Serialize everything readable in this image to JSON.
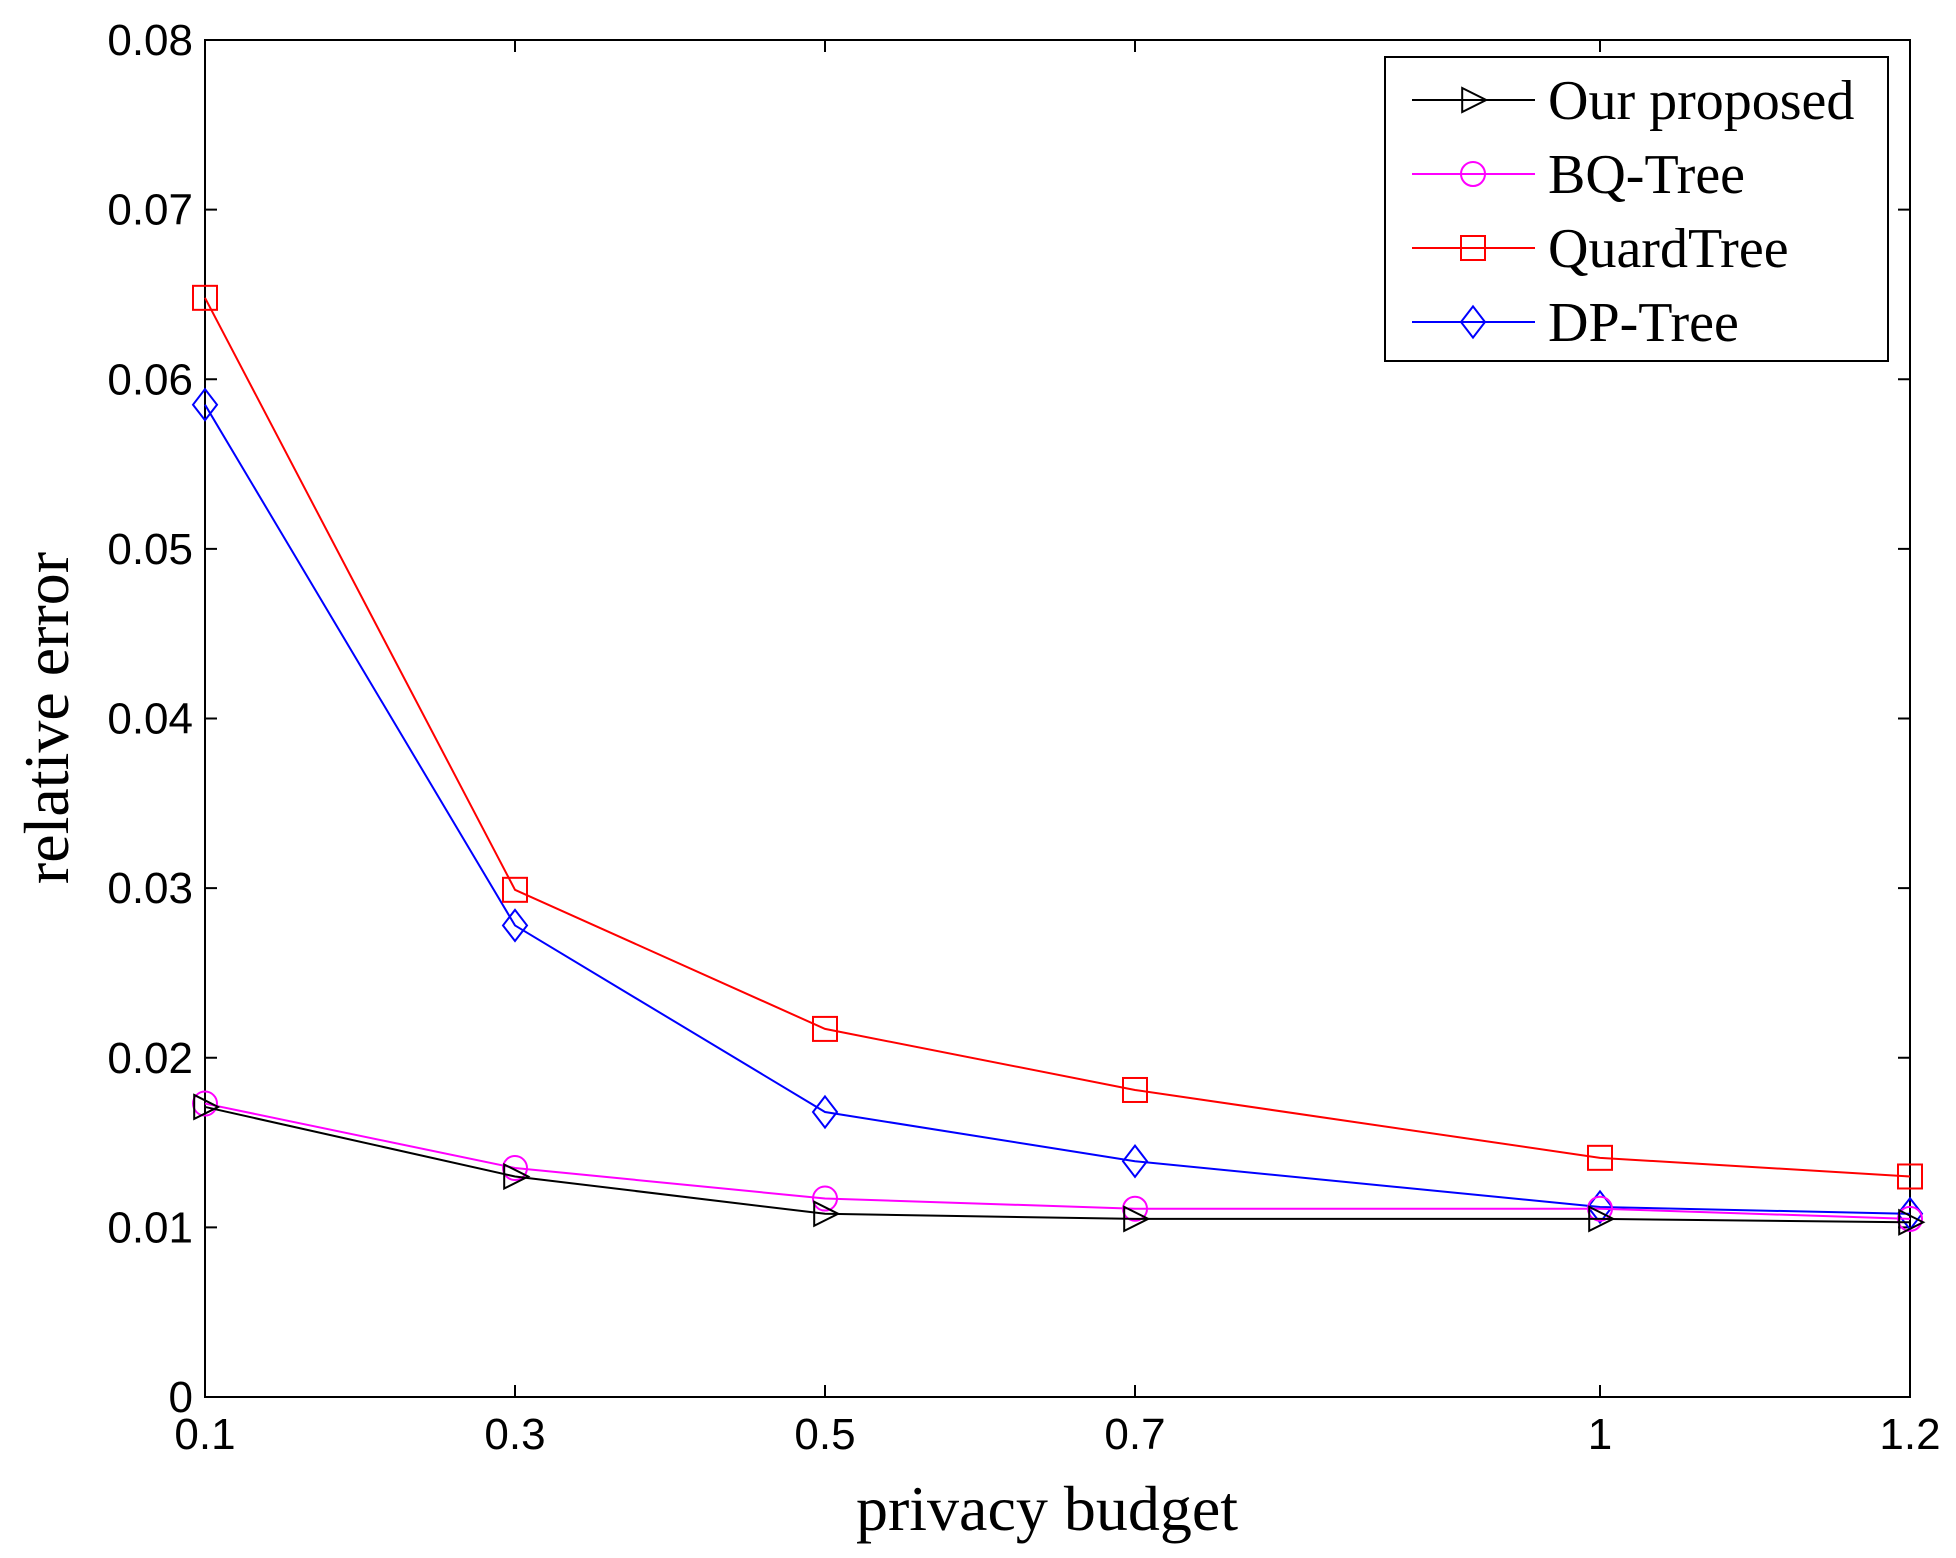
{
  "chart_data": {
    "type": "line",
    "title": "",
    "xlabel": "privacy budget",
    "ylabel": "relative error",
    "x": [
      0.1,
      0.3,
      0.5,
      0.7,
      1,
      1.2
    ],
    "xlim": [
      0.1,
      1.2
    ],
    "ylim": [
      0,
      0.08
    ],
    "xticks": [
      0.1,
      0.3,
      0.5,
      0.7,
      1,
      1.2
    ],
    "xtick_labels": [
      "0.1",
      "0.3",
      "0.5",
      "0.7",
      "1",
      "1.2"
    ],
    "yticks": [
      0,
      0.01,
      0.02,
      0.03,
      0.04,
      0.05,
      0.06,
      0.07,
      0.08
    ],
    "ytick_labels": [
      "0",
      "0.01",
      "0.02",
      "0.03",
      "0.04",
      "0.05",
      "0.06",
      "0.07",
      "0.08"
    ],
    "grid": false,
    "legend_position": "top-right",
    "series": [
      {
        "name": "Our proposed",
        "color": "#000000",
        "marker": "triangle-right",
        "values": [
          0.0171,
          0.013,
          0.0108,
          0.0105,
          0.0105,
          0.0103
        ]
      },
      {
        "name": "BQ-Tree",
        "color": "#ff00ff",
        "marker": "circle",
        "values": [
          0.0173,
          0.0135,
          0.0117,
          0.0111,
          0.0111,
          0.0105
        ]
      },
      {
        "name": "QuardTree",
        "color": "#ff0000",
        "marker": "square",
        "values": [
          0.0648,
          0.0299,
          0.0217,
          0.0181,
          0.0141,
          0.013
        ]
      },
      {
        "name": "DP-Tree",
        "color": "#0000ff",
        "marker": "diamond",
        "values": [
          0.0585,
          0.0278,
          0.0168,
          0.0139,
          0.0112,
          0.0108
        ]
      }
    ]
  }
}
